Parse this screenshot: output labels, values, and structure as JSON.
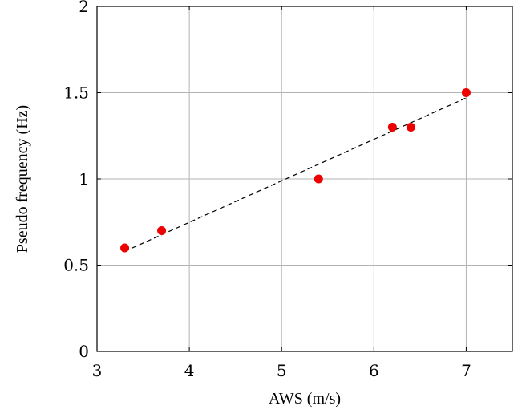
{
  "chart_data": {
    "type": "scatter",
    "xlabel": "AWS (m/s)",
    "ylabel": "Pseudo frequency (Hz)",
    "xlim": [
      3,
      7.5
    ],
    "ylim": [
      0,
      2
    ],
    "x_ticks": [
      3,
      4,
      5,
      6,
      7
    ],
    "y_ticks": [
      0,
      0.5,
      1,
      1.5,
      2
    ],
    "x_tick_labels": [
      "3",
      "4",
      "5",
      "6",
      "7"
    ],
    "y_tick_labels": [
      "0",
      "0.5",
      "1",
      "1.5",
      "2"
    ],
    "grid": true,
    "series": [
      {
        "type": "scatter",
        "color": "#ee0000",
        "x": [
          3.3,
          3.7,
          5.4,
          6.2,
          6.4,
          7.0
        ],
        "y": [
          0.6,
          0.7,
          1.0,
          1.3,
          1.3,
          1.5
        ]
      },
      {
        "type": "line",
        "style": "dashed",
        "color": "#000000",
        "x": [
          3.3,
          7.0
        ],
        "y": [
          0.58,
          1.47
        ]
      }
    ]
  }
}
